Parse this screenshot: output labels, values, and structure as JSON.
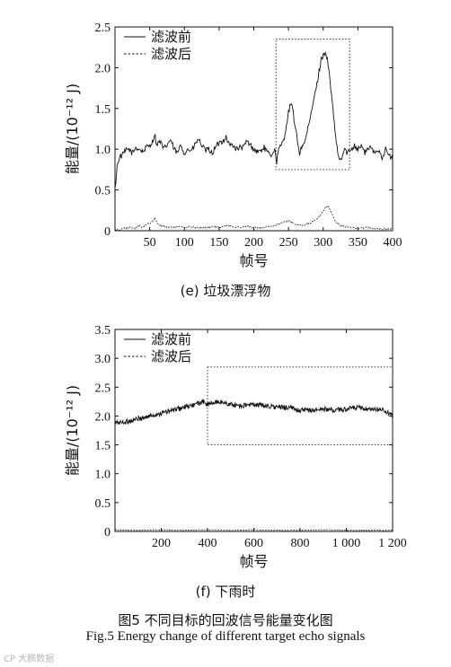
{
  "chart_data": [
    {
      "type": "line",
      "subcaption": "(e)  垃圾漂浮物",
      "xlabel": "帧号",
      "ylabel": "能量/(10⁻¹² J)",
      "xlim": [
        0,
        400
      ],
      "ylim": [
        0,
        2.5
      ],
      "xticks": [
        50,
        100,
        150,
        200,
        250,
        300,
        350,
        400
      ],
      "xtick_labels": [
        "50",
        "100",
        "150",
        "200",
        "250",
        "300",
        "350",
        "400"
      ],
      "yticks": [
        0,
        0.5,
        1.0,
        1.5,
        2.0,
        2.5
      ],
      "ytick_labels": [
        "0",
        "0.5",
        "1.0",
        "1.5",
        "2.0",
        "2.5"
      ],
      "legend_position": "top-left",
      "highlight_box": {
        "x": [
          232,
          338
        ],
        "y": [
          0.75,
          2.35
        ]
      },
      "series": [
        {
          "name": "滤波前",
          "style": "solid",
          "x": [
            0,
            3,
            6,
            10,
            15,
            20,
            25,
            30,
            35,
            40,
            45,
            50,
            55,
            57,
            60,
            65,
            70,
            75,
            80,
            85,
            90,
            95,
            100,
            105,
            110,
            115,
            120,
            125,
            130,
            135,
            140,
            145,
            150,
            155,
            160,
            165,
            170,
            175,
            180,
            185,
            190,
            195,
            200,
            205,
            210,
            215,
            220,
            225,
            230,
            233,
            236,
            240,
            244,
            247,
            250,
            253,
            256,
            259,
            262,
            266,
            270,
            274,
            278,
            282,
            286,
            290,
            294,
            297,
            300,
            303,
            306,
            309,
            312,
            315,
            318,
            321,
            324,
            327,
            331,
            335,
            340,
            345,
            350,
            355,
            360,
            365,
            370,
            375,
            380,
            385,
            390,
            395,
            400
          ],
          "y": [
            0.5,
            0.78,
            0.9,
            0.92,
            0.98,
            1.0,
            0.95,
            1.02,
            1.0,
            0.97,
            1.02,
            1.05,
            1.1,
            1.2,
            1.05,
            1.1,
            1.0,
            1.05,
            1.12,
            1.0,
            0.95,
            1.05,
            0.95,
            1.0,
            0.98,
            1.05,
            1.12,
            1.05,
            0.98,
            1.0,
            0.95,
            1.02,
            1.08,
            1.1,
            1.15,
            1.05,
            1.05,
            1.0,
            1.02,
            1.02,
            1.1,
            1.05,
            1.0,
            0.97,
            0.98,
            1.02,
            0.95,
            0.93,
            1.0,
            0.85,
            1.0,
            1.05,
            1.15,
            1.3,
            1.45,
            1.55,
            1.5,
            1.3,
            1.15,
            0.95,
            1.05,
            1.1,
            1.25,
            1.4,
            1.6,
            1.75,
            1.95,
            2.1,
            2.15,
            2.2,
            2.1,
            1.9,
            1.65,
            1.4,
            1.15,
            0.95,
            0.85,
            0.9,
            1.0,
            0.95,
            1.0,
            1.05,
            1.0,
            1.05,
            0.95,
            1.02,
            1.0,
            0.95,
            1.0,
            0.9,
            1.0,
            0.92,
            0.88
          ]
        },
        {
          "name": "滤波后",
          "style": "dashed",
          "x": [
            0,
            10,
            20,
            30,
            35,
            40,
            45,
            50,
            55,
            57,
            60,
            65,
            70,
            80,
            90,
            100,
            110,
            120,
            130,
            140,
            150,
            160,
            170,
            180,
            190,
            200,
            210,
            220,
            230,
            240,
            250,
            260,
            270,
            280,
            290,
            295,
            300,
            303,
            306,
            309,
            312,
            315,
            320,
            325,
            330,
            340,
            350,
            360,
            370,
            380,
            390,
            400
          ],
          "y": [
            0.0,
            0.02,
            0.04,
            0.03,
            0.06,
            0.04,
            0.08,
            0.09,
            0.12,
            0.16,
            0.1,
            0.07,
            0.05,
            0.04,
            0.05,
            0.04,
            0.05,
            0.03,
            0.04,
            0.05,
            0.04,
            0.06,
            0.05,
            0.04,
            0.05,
            0.04,
            0.03,
            0.05,
            0.06,
            0.1,
            0.12,
            0.08,
            0.06,
            0.09,
            0.14,
            0.18,
            0.24,
            0.28,
            0.3,
            0.28,
            0.22,
            0.16,
            0.09,
            0.06,
            0.05,
            0.04,
            0.03,
            0.04,
            0.03,
            0.02,
            0.02,
            0.02
          ]
        }
      ]
    },
    {
      "type": "line",
      "subcaption": "(f)  下雨时",
      "xlabel": "帧号",
      "ylabel": "能量/(10⁻¹² J)",
      "xlim": [
        0,
        1200
      ],
      "ylim": [
        0,
        3.5
      ],
      "xticks": [
        200,
        400,
        600,
        800,
        1000,
        1200
      ],
      "xtick_labels": [
        "200",
        "400",
        "600",
        "800",
        "1 000",
        "1 200"
      ],
      "yticks": [
        0,
        0.5,
        1.0,
        1.5,
        2.0,
        2.5,
        3.0,
        3.5
      ],
      "ytick_labels": [
        "0",
        "0.5",
        "1.0",
        "1.5",
        "2.0",
        "2.5",
        "3.0",
        "3.5"
      ],
      "legend_position": "top-left",
      "highlight_box": {
        "x": [
          400,
          1200
        ],
        "y": [
          1.5,
          2.85
        ]
      },
      "series": [
        {
          "name": "滤波前",
          "style": "solid",
          "x": [
            0,
            50,
            100,
            150,
            200,
            250,
            300,
            350,
            380,
            400,
            450,
            500,
            550,
            600,
            650,
            700,
            750,
            800,
            850,
            900,
            950,
            1000,
            1050,
            1100,
            1150,
            1180,
            1200
          ],
          "y": [
            1.88,
            1.9,
            1.95,
            2.0,
            2.05,
            2.1,
            2.15,
            2.2,
            2.25,
            2.2,
            2.25,
            2.2,
            2.18,
            2.2,
            2.18,
            2.15,
            2.15,
            2.1,
            2.1,
            2.12,
            2.1,
            2.12,
            2.15,
            2.1,
            2.12,
            2.05,
            2.0
          ]
        },
        {
          "name": "滤波后",
          "style": "dashed",
          "x": [
            0,
            100,
            200,
            300,
            400,
            500,
            600,
            700,
            800,
            900,
            1000,
            1100,
            1200
          ],
          "y": [
            0.03,
            0.02,
            0.03,
            0.02,
            0.03,
            0.02,
            0.03,
            0.02,
            0.02,
            0.03,
            0.02,
            0.02,
            0.02
          ]
        }
      ]
    }
  ],
  "figure_caption_zh": "图5   不同目标的回波信号能量变化图",
  "figure_caption_en": "Fig.5    Energy change of different target echo signals",
  "watermark": "CP 大鹏数据"
}
